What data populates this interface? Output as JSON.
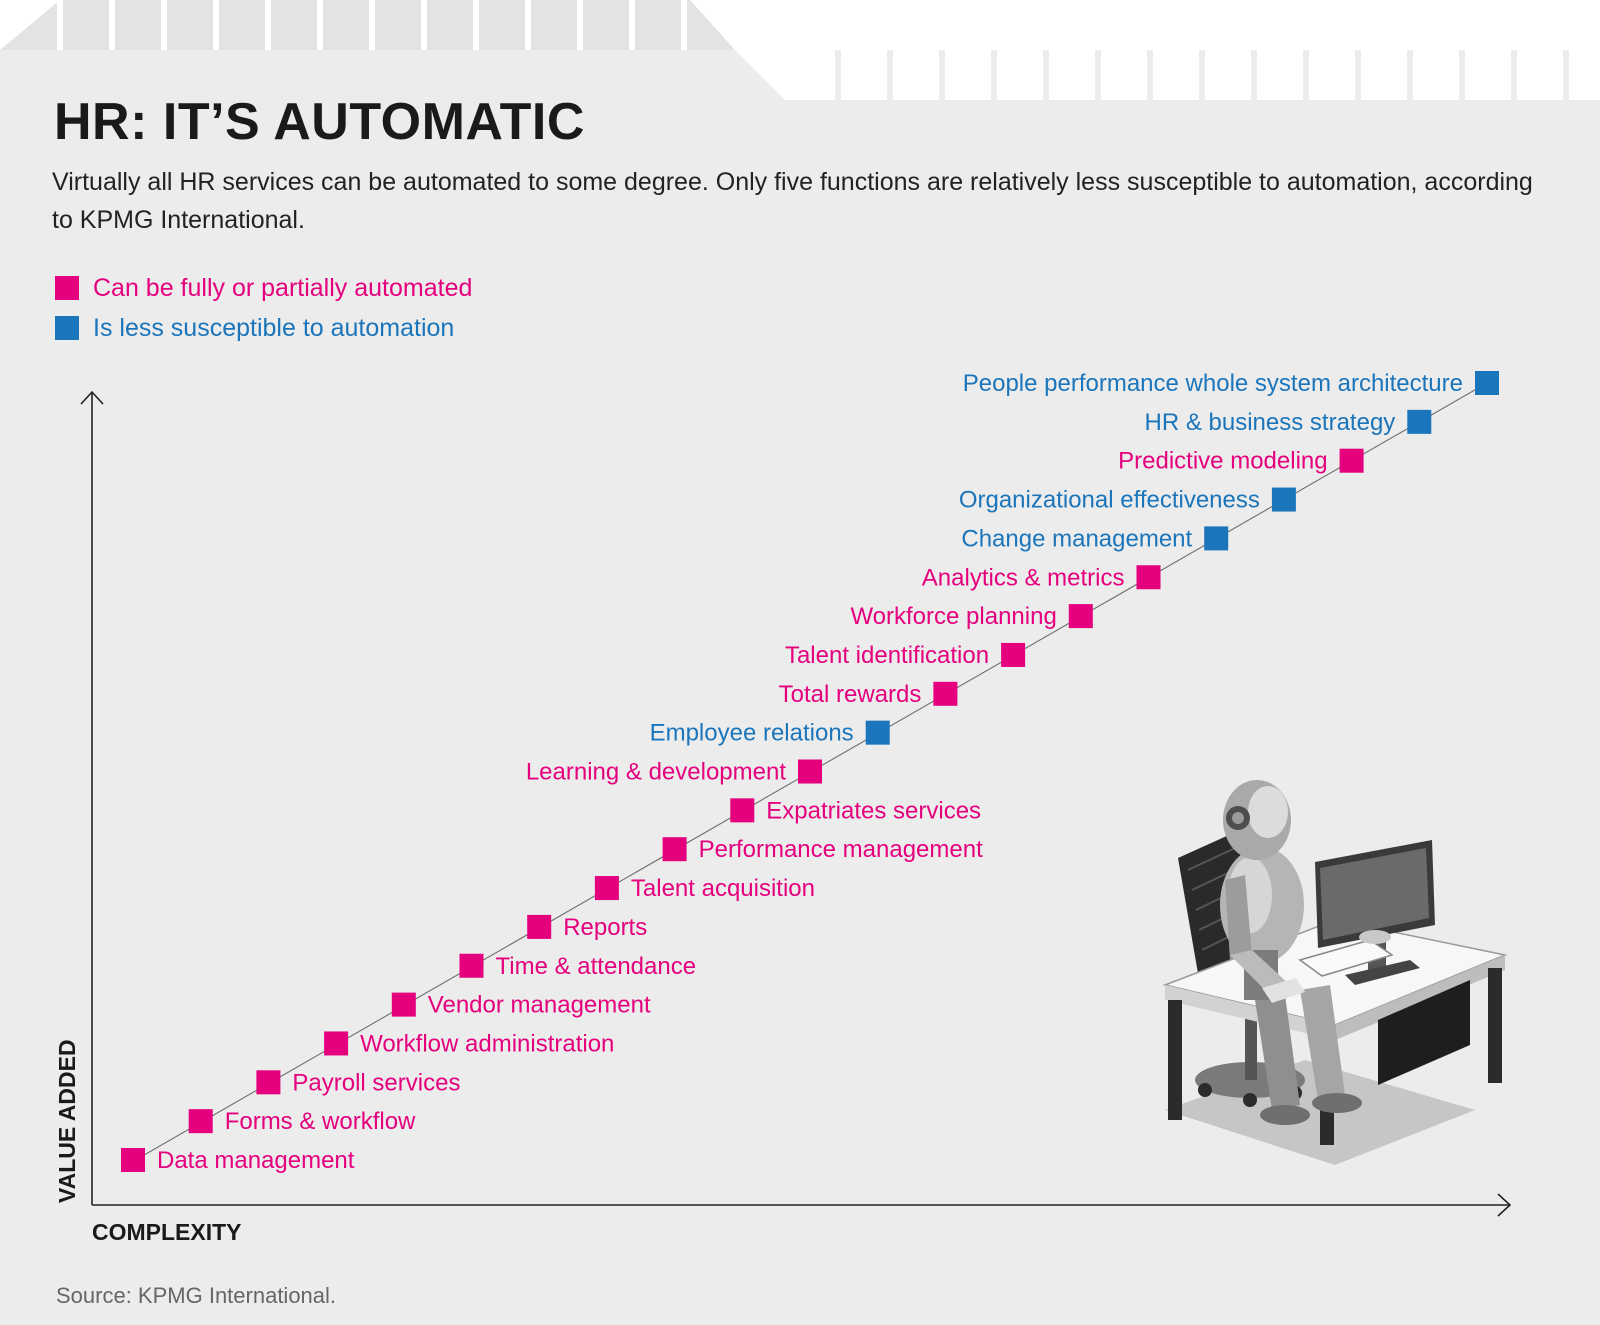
{
  "title": "HR: IT’S AUTOMATIC",
  "subtitle": "Virtually all HR services can be automated to some degree. Only five functions are relatively less susceptible to automation, according to KPMG International.",
  "source": "Source: KPMG International.",
  "colors": {
    "automated": "#e5007e",
    "less": "#1b75bb",
    "text": "#1a1a1a",
    "background": "#ececec"
  },
  "legend": [
    {
      "label": "Can be fully or partially automated",
      "color": "#e5007e"
    },
    {
      "label": "Is less susceptible to automation",
      "color": "#1b75bb"
    }
  ],
  "illustration": "robot-at-computer-desk",
  "chart_data": {
    "type": "scatter",
    "xlabel": "COMPLEXITY",
    "ylabel": "VALUE ADDED",
    "grid": false,
    "trend_line": true,
    "points": [
      {
        "label": "Data management",
        "rank": 1,
        "category": "automated",
        "label_side": "right"
      },
      {
        "label": "Forms & workflow",
        "rank": 2,
        "category": "automated",
        "label_side": "right"
      },
      {
        "label": "Payroll services",
        "rank": 3,
        "category": "automated",
        "label_side": "right"
      },
      {
        "label": "Workflow administration",
        "rank": 4,
        "category": "automated",
        "label_side": "right"
      },
      {
        "label": "Vendor management",
        "rank": 5,
        "category": "automated",
        "label_side": "right"
      },
      {
        "label": "Time & attendance",
        "rank": 6,
        "category": "automated",
        "label_side": "right"
      },
      {
        "label": "Reports",
        "rank": 7,
        "category": "automated",
        "label_side": "right"
      },
      {
        "label": "Talent acquisition",
        "rank": 8,
        "category": "automated",
        "label_side": "right"
      },
      {
        "label": "Performance management",
        "rank": 9,
        "category": "automated",
        "label_side": "right"
      },
      {
        "label": "Expatriates services",
        "rank": 10,
        "category": "automated",
        "label_side": "right"
      },
      {
        "label": "Learning & development",
        "rank": 11,
        "category": "automated",
        "label_side": "left"
      },
      {
        "label": "Employee relations",
        "rank": 12,
        "category": "less",
        "label_side": "left"
      },
      {
        "label": "Total rewards",
        "rank": 13,
        "category": "automated",
        "label_side": "left"
      },
      {
        "label": "Talent identification",
        "rank": 14,
        "category": "automated",
        "label_side": "left"
      },
      {
        "label": "Workforce planning",
        "rank": 15,
        "category": "automated",
        "label_side": "left"
      },
      {
        "label": "Analytics & metrics",
        "rank": 16,
        "category": "automated",
        "label_side": "left"
      },
      {
        "label": "Change management",
        "rank": 17,
        "category": "less",
        "label_side": "left"
      },
      {
        "label": "Organizational effectiveness",
        "rank": 18,
        "category": "less",
        "label_side": "left"
      },
      {
        "label": "Predictive modeling",
        "rank": 19,
        "category": "automated",
        "label_side": "left"
      },
      {
        "label": "HR & business strategy",
        "rank": 20,
        "category": "less",
        "label_side": "left"
      },
      {
        "label": "People performance whole system architecture",
        "rank": 21,
        "category": "less",
        "label_side": "left"
      }
    ]
  }
}
